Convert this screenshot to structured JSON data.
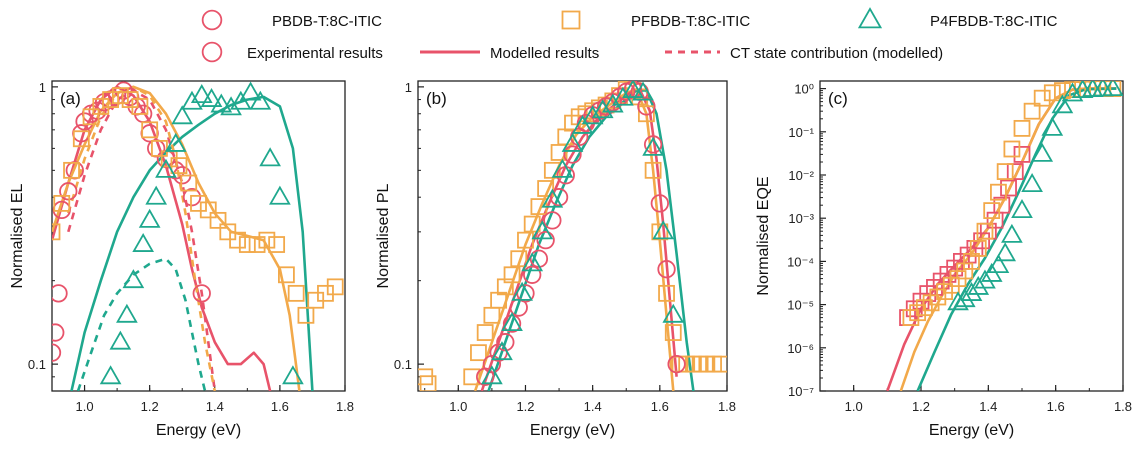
{
  "legend": {
    "row1": [
      {
        "label": "PBDB-T:8C-ITIC",
        "marker": "circle",
        "color": "#E8536A"
      },
      {
        "label": "PFBDB-T:8C-ITIC",
        "marker": "square",
        "color": "#F2A94A"
      },
      {
        "label": "P4FBDB-T:8C-ITIC",
        "marker": "triangle",
        "color": "#1FA88E"
      }
    ],
    "row2": [
      {
        "label": "Experimental results",
        "kind": "marker"
      },
      {
        "label": "Modelled results",
        "kind": "solid"
      },
      {
        "label": "CT state contribution (modelled)",
        "kind": "dashed"
      }
    ]
  },
  "colors": {
    "PBDB": "#E8536A",
    "PFBDB": "#F2A94A",
    "P4FBDB": "#1FA88E"
  },
  "chart_data": [
    {
      "type": "scatter",
      "panel": "(a)",
      "xlabel": "Energy (eV)",
      "ylabel": "Normalised EL",
      "xlim": [
        0.9,
        1.8
      ],
      "ylim": [
        0.08,
        1.05
      ],
      "yscale": "log",
      "xticks": [
        "1.0",
        "1.2",
        "1.4",
        "1.6",
        "1.8"
      ],
      "yticks": [
        {
          "v": 1,
          "label": "1"
        },
        {
          "v": 0.1,
          "label": "0.1"
        }
      ],
      "series": [
        {
          "color": "#E8536A",
          "marker": "circle",
          "x": [
            0.9,
            0.91,
            0.92,
            0.93,
            0.95,
            0.97,
            0.99,
            1.0,
            1.02,
            1.04,
            1.06,
            1.08,
            1.1,
            1.12,
            1.14,
            1.16,
            1.18,
            1.2,
            1.22,
            1.25,
            1.28,
            1.3,
            1.33,
            1.36
          ],
          "y": [
            0.11,
            0.13,
            0.18,
            0.36,
            0.42,
            0.5,
            0.68,
            0.75,
            0.8,
            0.82,
            0.88,
            0.9,
            0.93,
            0.97,
            0.92,
            0.85,
            0.8,
            0.68,
            0.6,
            0.55,
            0.5,
            0.48,
            0.4,
            0.18
          ]
        },
        {
          "color": "#F2A94A",
          "marker": "square",
          "x": [
            0.9,
            0.93,
            0.96,
            0.99,
            1.02,
            1.05,
            1.08,
            1.11,
            1.14,
            1.17,
            1.2,
            1.23,
            1.26,
            1.29,
            1.32,
            1.35,
            1.38,
            1.41,
            1.44,
            1.47,
            1.5,
            1.53,
            1.56,
            1.59,
            1.62,
            1.65,
            1.68,
            1.71,
            1.74,
            1.77
          ],
          "y": [
            0.3,
            0.38,
            0.5,
            0.65,
            0.78,
            0.85,
            0.9,
            0.93,
            0.9,
            0.85,
            0.7,
            0.6,
            0.55,
            0.52,
            0.45,
            0.38,
            0.36,
            0.33,
            0.3,
            0.28,
            0.27,
            0.27,
            0.28,
            0.27,
            0.21,
            0.18,
            0.15,
            0.17,
            0.18,
            0.19
          ]
        },
        {
          "color": "#1FA88E",
          "marker": "triangle",
          "x": [
            1.08,
            1.11,
            1.13,
            1.15,
            1.18,
            1.2,
            1.22,
            1.25,
            1.28,
            1.3,
            1.33,
            1.36,
            1.39,
            1.42,
            1.45,
            1.48,
            1.51,
            1.54,
            1.57,
            1.6,
            1.64
          ],
          "y": [
            0.09,
            0.12,
            0.15,
            0.2,
            0.27,
            0.33,
            0.4,
            0.5,
            0.62,
            0.78,
            0.88,
            0.93,
            0.9,
            0.86,
            0.84,
            0.88,
            0.95,
            0.88,
            0.55,
            0.4,
            0.09
          ]
        }
      ],
      "model_solid": [
        {
          "color": "#E8536A",
          "x": [
            0.9,
            0.95,
            1.0,
            1.05,
            1.1,
            1.15,
            1.2,
            1.25,
            1.3,
            1.33,
            1.36,
            1.4,
            1.44,
            1.48,
            1.52,
            1.55,
            1.57
          ],
          "y": [
            0.28,
            0.45,
            0.7,
            0.9,
            1.0,
            0.93,
            0.75,
            0.52,
            0.32,
            0.22,
            0.16,
            0.12,
            0.1,
            0.1,
            0.11,
            0.1,
            0.08
          ]
        },
        {
          "color": "#F2A94A",
          "x": [
            0.9,
            0.95,
            1.0,
            1.05,
            1.1,
            1.15,
            1.2,
            1.25,
            1.3,
            1.35,
            1.4,
            1.45,
            1.5,
            1.55,
            1.6,
            1.63,
            1.66
          ],
          "y": [
            0.3,
            0.45,
            0.62,
            0.82,
            0.95,
            1.0,
            0.95,
            0.8,
            0.62,
            0.45,
            0.35,
            0.3,
            0.29,
            0.28,
            0.22,
            0.15,
            0.08
          ]
        },
        {
          "color": "#1FA88E",
          "x": [
            0.96,
            1.0,
            1.05,
            1.1,
            1.15,
            1.2,
            1.25,
            1.3,
            1.35,
            1.4,
            1.45,
            1.5,
            1.55,
            1.6,
            1.64,
            1.67,
            1.7
          ],
          "y": [
            0.08,
            0.13,
            0.2,
            0.3,
            0.4,
            0.5,
            0.58,
            0.66,
            0.73,
            0.8,
            0.86,
            0.9,
            0.92,
            0.85,
            0.6,
            0.3,
            0.08
          ]
        }
      ],
      "model_dashed": [
        {
          "color": "#E8536A",
          "x": [
            0.95,
            1.0,
            1.05,
            1.1,
            1.15,
            1.2,
            1.25,
            1.3,
            1.33,
            1.36,
            1.38,
            1.4
          ],
          "y": [
            0.3,
            0.48,
            0.7,
            0.9,
            0.97,
            0.9,
            0.7,
            0.45,
            0.3,
            0.18,
            0.12,
            0.08
          ]
        },
        {
          "color": "#F2A94A",
          "x": [
            0.95,
            1.0,
            1.05,
            1.1,
            1.15,
            1.2,
            1.25,
            1.28,
            1.31,
            1.34,
            1.37,
            1.4
          ],
          "y": [
            0.35,
            0.55,
            0.78,
            0.95,
            1.0,
            0.93,
            0.75,
            0.55,
            0.35,
            0.2,
            0.12,
            0.08
          ]
        },
        {
          "color": "#1FA88E",
          "x": [
            0.98,
            1.02,
            1.06,
            1.1,
            1.15,
            1.2,
            1.25,
            1.28,
            1.31,
            1.33,
            1.35,
            1.37
          ],
          "y": [
            0.08,
            0.11,
            0.15,
            0.18,
            0.21,
            0.23,
            0.24,
            0.22,
            0.17,
            0.13,
            0.1,
            0.08
          ]
        }
      ]
    },
    {
      "type": "scatter",
      "panel": "(b)",
      "xlabel": "Energy (eV)",
      "ylabel": "Normalised PL",
      "xlim": [
        0.88,
        1.8
      ],
      "ylim": [
        0.08,
        1.05
      ],
      "yscale": "log",
      "xticks": [
        "1.0",
        "1.2",
        "1.4",
        "1.6",
        "1.8"
      ],
      "yticks": [
        {
          "v": 1,
          "label": "1"
        },
        {
          "v": 0.1,
          "label": "0.1"
        }
      ],
      "series": [
        {
          "color": "#F2A94A",
          "marker": "square",
          "x": [
            0.9,
            0.91,
            1.04,
            1.06,
            1.08,
            1.1,
            1.12,
            1.14,
            1.16,
            1.18,
            1.2,
            1.22,
            1.24,
            1.26,
            1.28,
            1.3,
            1.32,
            1.34,
            1.36,
            1.38,
            1.4,
            1.42,
            1.44,
            1.46,
            1.48,
            1.5,
            1.52,
            1.54,
            1.56,
            1.58,
            1.6,
            1.62,
            1.64,
            1.66,
            1.68,
            1.7,
            1.72,
            1.74,
            1.76,
            1.78
          ],
          "y": [
            0.09,
            0.085,
            0.09,
            0.11,
            0.13,
            0.15,
            0.17,
            0.19,
            0.21,
            0.24,
            0.28,
            0.32,
            0.37,
            0.43,
            0.5,
            0.58,
            0.66,
            0.74,
            0.78,
            0.8,
            0.82,
            0.84,
            0.86,
            0.89,
            0.93,
            0.98,
            0.97,
            0.92,
            0.8,
            0.5,
            0.3,
            0.18,
            0.13,
            0.1,
            0.1,
            0.1,
            0.1,
            0.1,
            0.1,
            0.1
          ]
        },
        {
          "color": "#E8536A",
          "marker": "circle",
          "x": [
            1.08,
            1.1,
            1.12,
            1.14,
            1.16,
            1.18,
            1.2,
            1.22,
            1.24,
            1.26,
            1.28,
            1.3,
            1.32,
            1.34,
            1.36,
            1.38,
            1.4,
            1.42,
            1.44,
            1.46,
            1.48,
            1.5,
            1.52,
            1.54,
            1.56,
            1.58,
            1.6,
            1.62,
            1.65
          ],
          "y": [
            0.09,
            0.1,
            0.11,
            0.12,
            0.14,
            0.16,
            0.18,
            0.21,
            0.24,
            0.28,
            0.33,
            0.4,
            0.48,
            0.57,
            0.66,
            0.74,
            0.79,
            0.82,
            0.85,
            0.88,
            0.92,
            0.96,
            0.98,
            0.96,
            0.85,
            0.62,
            0.38,
            0.22,
            0.1
          ]
        },
        {
          "color": "#1FA88E",
          "marker": "triangle",
          "x": [
            1.1,
            1.13,
            1.16,
            1.19,
            1.22,
            1.25,
            1.28,
            1.31,
            1.34,
            1.37,
            1.4,
            1.43,
            1.46,
            1.49,
            1.52,
            1.55,
            1.58,
            1.61,
            1.64
          ],
          "y": [
            0.09,
            0.11,
            0.14,
            0.18,
            0.23,
            0.3,
            0.39,
            0.5,
            0.62,
            0.72,
            0.78,
            0.82,
            0.86,
            0.91,
            0.97,
            0.95,
            0.6,
            0.3,
            0.15
          ]
        }
      ],
      "model_solid": [
        {
          "color": "#F2A94A",
          "x": [
            1.05,
            1.1,
            1.15,
            1.2,
            1.25,
            1.3,
            1.35,
            1.4,
            1.45,
            1.5,
            1.53,
            1.56,
            1.58,
            1.6,
            1.62,
            1.64
          ],
          "y": [
            0.08,
            0.12,
            0.18,
            0.27,
            0.38,
            0.52,
            0.67,
            0.78,
            0.86,
            0.95,
            0.98,
            0.8,
            0.5,
            0.28,
            0.15,
            0.08
          ]
        },
        {
          "color": "#E8536A",
          "x": [
            1.07,
            1.12,
            1.17,
            1.22,
            1.27,
            1.32,
            1.37,
            1.42,
            1.47,
            1.51,
            1.54,
            1.57,
            1.59,
            1.61,
            1.63,
            1.65
          ],
          "y": [
            0.08,
            0.12,
            0.18,
            0.27,
            0.38,
            0.52,
            0.66,
            0.78,
            0.87,
            0.95,
            0.98,
            0.82,
            0.55,
            0.32,
            0.17,
            0.09
          ]
        },
        {
          "color": "#1FA88E",
          "x": [
            1.09,
            1.14,
            1.19,
            1.24,
            1.29,
            1.34,
            1.39,
            1.44,
            1.49,
            1.53,
            1.56,
            1.59,
            1.62,
            1.65,
            1.68,
            1.7
          ],
          "y": [
            0.08,
            0.12,
            0.18,
            0.27,
            0.38,
            0.52,
            0.66,
            0.78,
            0.88,
            0.97,
            0.97,
            0.8,
            0.5,
            0.25,
            0.12,
            0.08
          ]
        }
      ]
    },
    {
      "type": "scatter",
      "panel": "(c)",
      "xlabel": "Energy (eV)",
      "ylabel": "Normalised EQE",
      "xlim": [
        0.9,
        1.8
      ],
      "ylim": [
        1e-07,
        1.5
      ],
      "yscale": "log",
      "xticks": [
        "1.0",
        "1.2",
        "1.4",
        "1.6",
        "1.8"
      ],
      "yticks": [
        {
          "v": 1,
          "label": "10⁰"
        },
        {
          "v": 0.1,
          "label": "10⁻¹"
        },
        {
          "v": 0.01,
          "label": "10⁻²"
        },
        {
          "v": 0.001,
          "label": "10⁻³"
        },
        {
          "v": 0.0001,
          "label": "10⁻⁴"
        },
        {
          "v": 1e-05,
          "label": "10⁻⁵"
        },
        {
          "v": 1e-06,
          "label": "10⁻⁶"
        },
        {
          "v": 1e-07,
          "label": "10⁻⁷"
        }
      ],
      "series": [
        {
          "color": "#E8536A",
          "marker": "square",
          "x": [
            1.16,
            1.18,
            1.2,
            1.22,
            1.24,
            1.26,
            1.28,
            1.3,
            1.32,
            1.34,
            1.36,
            1.38,
            1.4,
            1.42,
            1.44,
            1.46,
            1.48,
            1.5
          ],
          "y": [
            5e-06,
            8e-06,
            1.2e-05,
            1.8e-05,
            2.5e-05,
            3.5e-05,
            5e-05,
            7e-05,
            0.0001,
            0.00014,
            0.0002,
            0.0003,
            0.0005,
            0.0009,
            0.002,
            0.005,
            0.012,
            0.03
          ]
        },
        {
          "color": "#F2A94A",
          "marker": "square",
          "x": [
            1.17,
            1.19,
            1.21,
            1.23,
            1.25,
            1.27,
            1.29,
            1.31,
            1.33,
            1.35,
            1.37,
            1.39,
            1.41,
            1.43,
            1.45,
            1.47,
            1.5,
            1.53,
            1.56,
            1.59,
            1.62,
            1.65,
            1.68,
            1.71,
            1.74,
            1.77
          ],
          "y": [
            5e-06,
            6.5e-06,
            8.5e-06,
            1.1e-05,
            1.5e-05,
            2e-05,
            2.8e-05,
            4e-05,
            6e-05,
            0.0001,
            0.0002,
            0.0005,
            0.0015,
            0.004,
            0.012,
            0.04,
            0.12,
            0.3,
            0.6,
            0.8,
            0.9,
            0.95,
            0.97,
            1.0,
            1.0,
            1.0
          ]
        },
        {
          "color": "#1FA88E",
          "marker": "triangle",
          "x": [
            1.31,
            1.33,
            1.35,
            1.37,
            1.39,
            1.41,
            1.43,
            1.45,
            1.47,
            1.5,
            1.53,
            1.56,
            1.59,
            1.62,
            1.65,
            1.68,
            1.71,
            1.74,
            1.77
          ],
          "y": [
            1.1e-05,
            1.3e-05,
            1.8e-05,
            2.5e-05,
            3.5e-05,
            5e-05,
            8e-05,
            0.00015,
            0.0004,
            0.0015,
            0.006,
            0.03,
            0.12,
            0.4,
            0.75,
            0.9,
            0.95,
            0.98,
            1.0
          ]
        }
      ],
      "model_solid": [
        {
          "color": "#E8536A",
          "x": [
            1.1,
            1.15,
            1.2,
            1.25,
            1.3,
            1.35,
            1.4,
            1.45,
            1.5,
            1.55,
            1.6,
            1.65,
            1.7,
            1.78
          ],
          "y": [
            1e-07,
            1.2e-06,
            8e-06,
            3e-05,
            8e-05,
            0.0002,
            0.0006,
            0.003,
            0.02,
            0.15,
            0.6,
            0.95,
            1.0,
            1.0
          ]
        },
        {
          "color": "#F2A94A",
          "x": [
            1.14,
            1.18,
            1.22,
            1.26,
            1.3,
            1.35,
            1.4,
            1.45,
            1.5,
            1.55,
            1.6,
            1.65,
            1.7,
            1.78
          ],
          "y": [
            1e-07,
            8e-07,
            4e-06,
            1.5e-05,
            5e-05,
            0.00015,
            0.0006,
            0.003,
            0.02,
            0.15,
            0.6,
            0.95,
            1.0,
            1.0
          ]
        },
        {
          "color": "#1FA88E",
          "x": [
            1.19,
            1.24,
            1.29,
            1.34,
            1.39,
            1.44,
            1.49,
            1.54,
            1.59,
            1.64,
            1.69,
            1.78
          ],
          "y": [
            1e-07,
            8e-07,
            6e-06,
            3e-05,
            0.00012,
            0.0006,
            0.004,
            0.03,
            0.2,
            0.7,
            0.97,
            1.0
          ]
        }
      ]
    }
  ]
}
